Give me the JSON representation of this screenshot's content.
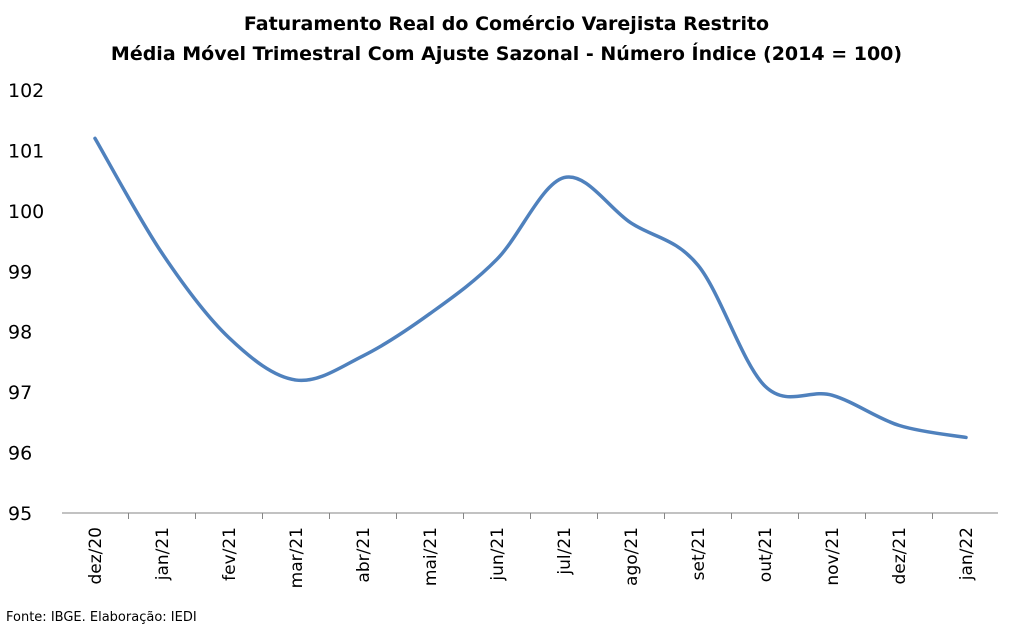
{
  "chart_data": {
    "type": "line",
    "title": "Faturamento Real do Comércio Varejista Restrito",
    "subtitle": "Média Móvel Trimestral Com Ajuste Sazonal - Número Índice (2014 = 100)",
    "categories": [
      "dez/20",
      "jan/21",
      "fev/21",
      "mar/21",
      "abr/21",
      "mai/21",
      "jun/21",
      "jul/21",
      "ago/21",
      "set/21",
      "out/21",
      "nov/21",
      "dez/21",
      "jan/22"
    ],
    "series": [
      {
        "values": [
          101.2,
          99.3,
          97.9,
          97.2,
          97.6,
          98.3,
          99.2,
          100.55,
          99.8,
          99.1,
          97.1,
          96.95,
          96.45,
          96.25
        ]
      }
    ],
    "ylim": [
      95,
      102
    ],
    "yticks": [
      "95",
      "96",
      "97",
      "98",
      "99",
      "100",
      "101",
      "102"
    ],
    "grid": false,
    "line_color": "#4F81BD",
    "source": "Fonte: IBGE. Elaboração: IEDI"
  }
}
